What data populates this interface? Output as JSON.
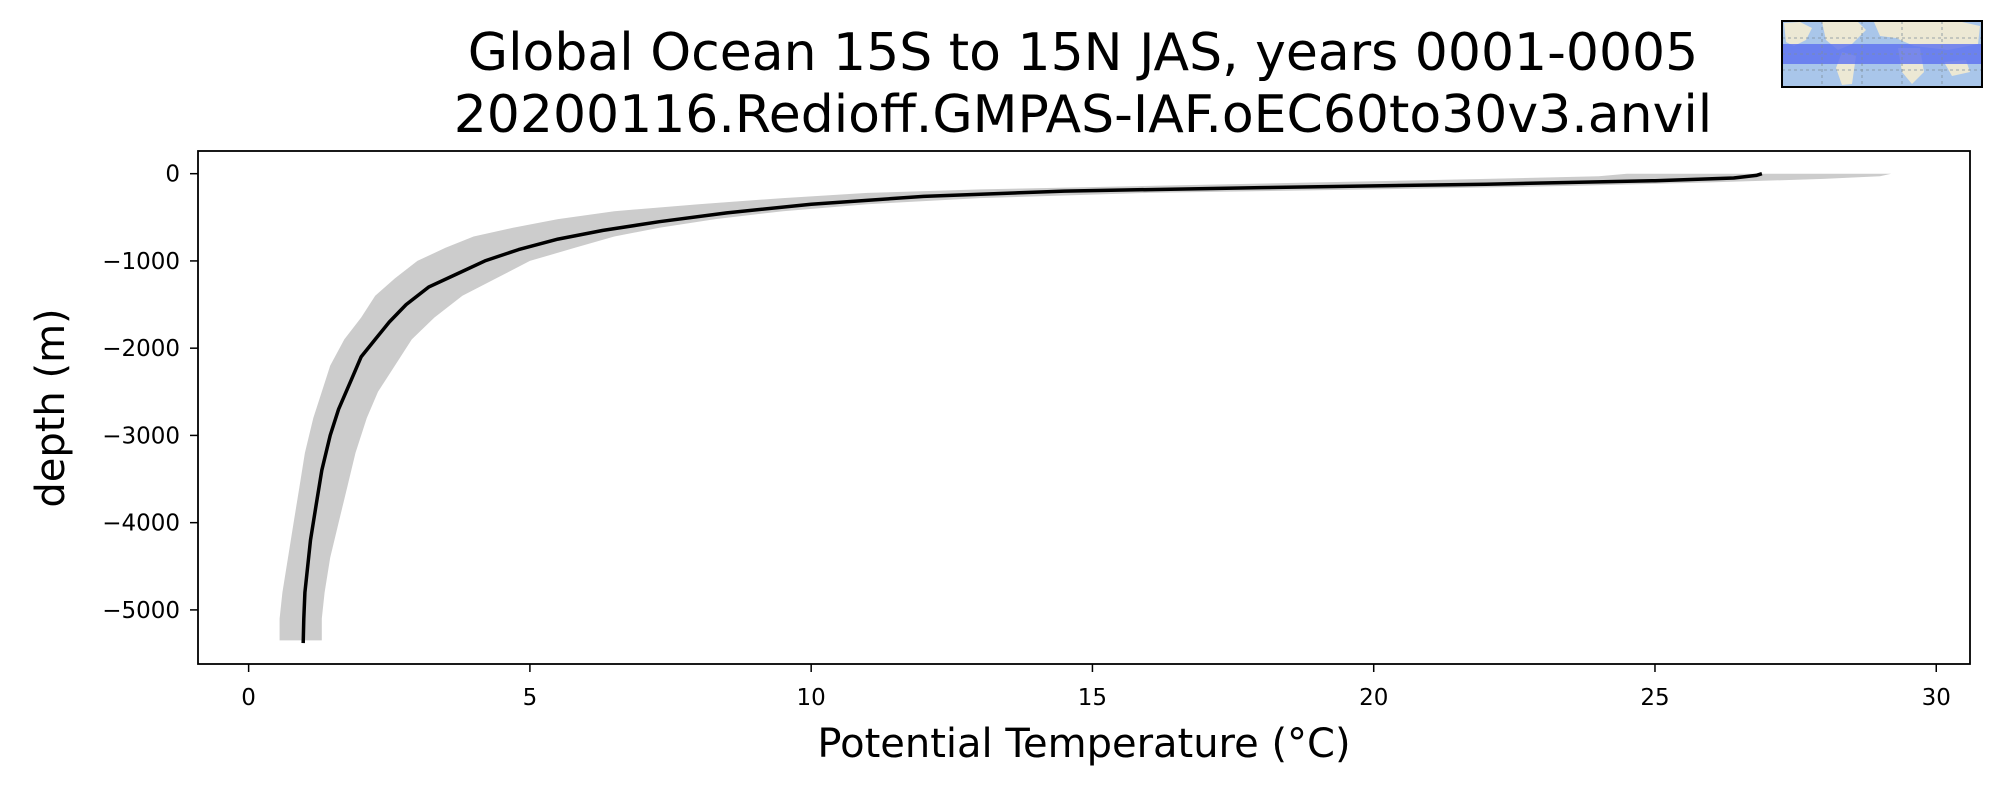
{
  "chart_data": {
    "type": "line",
    "title": "Global Ocean 15S to 15N JAS, years 0001-0005",
    "subtitle": "20200116.Redioff.GMPAS-IAF.oEC60to30v3.anvil",
    "xlabel": "Potential Temperature (°C)",
    "ylabel": "depth (m)",
    "xlim": [
      -0.9,
      30.6
    ],
    "ylim": [
      -5620,
      260
    ],
    "xticks": [
      0,
      5,
      10,
      15,
      20,
      25,
      30
    ],
    "yticks": [
      0,
      -1000,
      -2000,
      -3000,
      -4000,
      -5000
    ],
    "xtick_labels": [
      "0",
      "5",
      "10",
      "15",
      "20",
      "25",
      "30"
    ],
    "ytick_labels": [
      "0",
      "−1000",
      "−2000",
      "−3000",
      "−4000",
      "−5000"
    ],
    "grid": false,
    "series": [
      {
        "kind": "mean-line",
        "color": "#000000",
        "x": [
          26.9,
          26.8,
          26.4,
          25.0,
          22.0,
          18.0,
          14.5,
          12.0,
          10.0,
          8.5,
          7.3,
          6.3,
          5.5,
          4.8,
          4.2,
          3.7,
          3.2,
          2.8,
          2.5,
          2.25,
          2.0,
          1.8,
          1.6,
          1.45,
          1.3,
          1.2,
          1.1,
          1.05,
          1.0,
          0.98,
          0.97
        ],
        "y": [
          0,
          -20,
          -50,
          -80,
          -120,
          -160,
          -200,
          -260,
          -350,
          -450,
          -550,
          -650,
          -750,
          -870,
          -1000,
          -1150,
          -1300,
          -1500,
          -1700,
          -1900,
          -2100,
          -2400,
          -2700,
          -3000,
          -3400,
          -3800,
          -4200,
          -4500,
          -4800,
          -5100,
          -5380
        ]
      },
      {
        "kind": "range-band",
        "color": "#cccccc",
        "x_low": [
          24.5,
          24.0,
          22.0,
          19.0,
          16.0,
          13.0,
          11.0,
          9.5,
          8.0,
          6.5,
          5.5,
          4.7,
          4.0,
          3.5,
          3.0,
          2.6,
          2.25,
          2.0,
          1.7,
          1.45,
          1.3,
          1.15,
          1.0,
          0.9,
          0.8,
          0.7,
          0.6,
          0.55,
          0.55
        ],
        "x_high": [
          29.2,
          29.0,
          28.0,
          26.0,
          23.5,
          20.0,
          16.0,
          13.0,
          11.0,
          9.5,
          8.3,
          7.3,
          6.5,
          5.8,
          5.0,
          4.4,
          3.8,
          3.3,
          2.9,
          2.6,
          2.3,
          2.1,
          1.9,
          1.75,
          1.6,
          1.45,
          1.35,
          1.3,
          1.3
        ],
        "y": [
          0,
          -30,
          -60,
          -100,
          -140,
          -180,
          -220,
          -280,
          -350,
          -430,
          -520,
          -620,
          -720,
          -850,
          -1000,
          -1200,
          -1400,
          -1650,
          -1900,
          -2200,
          -2500,
          -2800,
          -3200,
          -3600,
          -4000,
          -4400,
          -4800,
          -5100,
          -5350
        ]
      }
    ],
    "inset_map": {
      "description_icon": "world-map-icon",
      "land_color": "#ece8d4",
      "ocean_color": "#a9c6ea",
      "region_color": "#5b6ff0"
    }
  }
}
